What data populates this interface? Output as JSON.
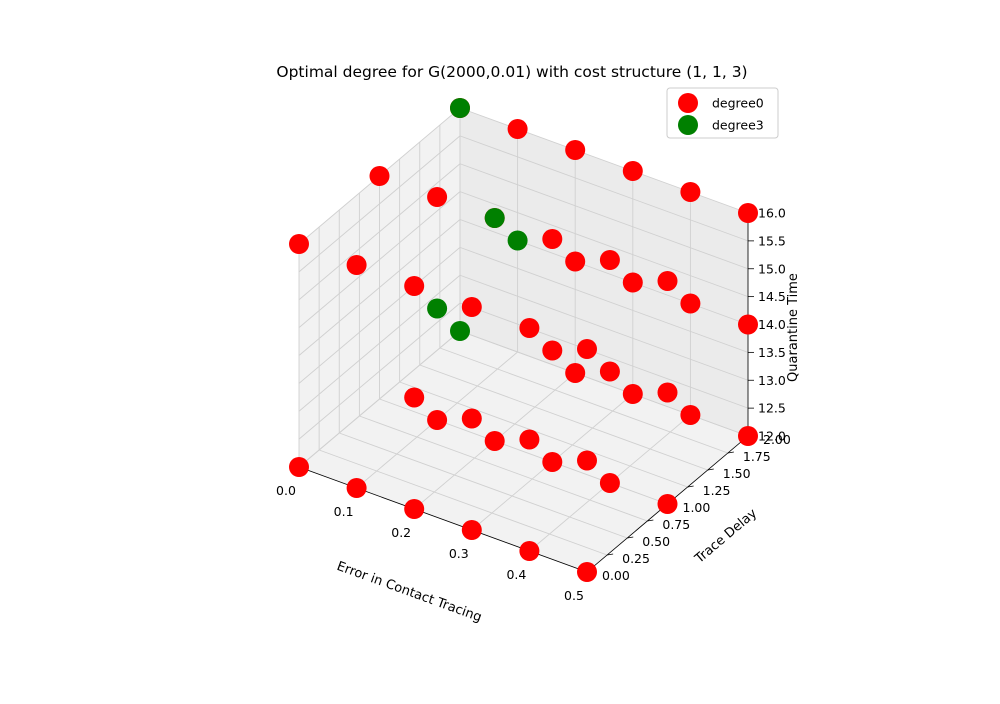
{
  "chart_data": {
    "type": "scatter",
    "title": "Optimal degree for G(2000,0.01) with cost structure (1, 1, 3)",
    "xlabel": "Error in Contact Tracing",
    "ylabel": "Trace Delay",
    "zlabel": "Quarantine Time",
    "xlim": [
      0,
      0.5
    ],
    "ylim": [
      0,
      2
    ],
    "zlim": [
      12,
      16
    ],
    "xticks": [
      "0.0",
      "0.1",
      "0.2",
      "0.3",
      "0.4",
      "0.5"
    ],
    "yticks": [
      "0.00",
      "0.25",
      "0.50",
      "0.75",
      "1.00",
      "1.25",
      "1.50",
      "1.75",
      "2.00"
    ],
    "zticks": [
      "12.0",
      "12.5",
      "13.0",
      "13.5",
      "14.0",
      "14.5",
      "15.0",
      "15.5",
      "16.0"
    ],
    "grid": true,
    "legend_position": "top-right",
    "series": [
      {
        "name": "degree0",
        "color": "#ff0000",
        "points": [
          [
            0.0,
            0,
            12
          ],
          [
            0.1,
            0,
            12
          ],
          [
            0.2,
            0,
            12
          ],
          [
            0.3,
            0,
            12
          ],
          [
            0.4,
            0,
            12
          ],
          [
            0.5,
            0,
            12
          ],
          [
            0.1,
            1,
            12
          ],
          [
            0.2,
            1,
            12
          ],
          [
            0.3,
            1,
            12
          ],
          [
            0.4,
            1,
            12
          ],
          [
            0.5,
            1,
            12
          ],
          [
            0.2,
            2,
            12
          ],
          [
            0.3,
            2,
            12
          ],
          [
            0.4,
            2,
            12
          ],
          [
            0.5,
            2,
            12
          ],
          [
            0.2,
            0,
            14
          ],
          [
            0.3,
            0,
            14
          ],
          [
            0.4,
            0,
            14
          ],
          [
            0.5,
            0,
            14
          ],
          [
            0.3,
            1,
            14
          ],
          [
            0.4,
            1,
            14
          ],
          [
            0.5,
            1,
            14
          ],
          [
            0.2,
            2,
            14
          ],
          [
            0.3,
            2,
            14
          ],
          [
            0.4,
            2,
            14
          ],
          [
            0.5,
            2,
            14
          ],
          [
            0.0,
            0,
            16
          ],
          [
            0.1,
            0,
            16
          ],
          [
            0.2,
            0,
            16
          ],
          [
            0.3,
            0,
            16
          ],
          [
            0.4,
            0,
            16
          ],
          [
            0.5,
            0,
            16
          ],
          [
            0.0,
            1,
            16
          ],
          [
            0.1,
            1,
            16
          ],
          [
            0.2,
            1,
            16
          ],
          [
            0.3,
            1,
            16
          ],
          [
            0.4,
            1,
            16
          ],
          [
            0.5,
            1,
            16
          ],
          [
            0.0,
            2,
            16
          ],
          [
            0.1,
            2,
            16
          ],
          [
            0.2,
            2,
            16
          ],
          [
            0.3,
            2,
            16
          ],
          [
            0.4,
            2,
            16
          ],
          [
            0.5,
            2,
            16
          ]
        ]
      },
      {
        "name": "degree3",
        "color": "#008000",
        "points": [
          [
            0.0,
            2,
            12
          ],
          [
            0.1,
            2,
            14
          ],
          [
            0.0,
            2,
            16
          ],
          [
            0.1,
            1,
            14
          ],
          [
            0.2,
            1,
            16
          ]
        ]
      }
    ]
  }
}
